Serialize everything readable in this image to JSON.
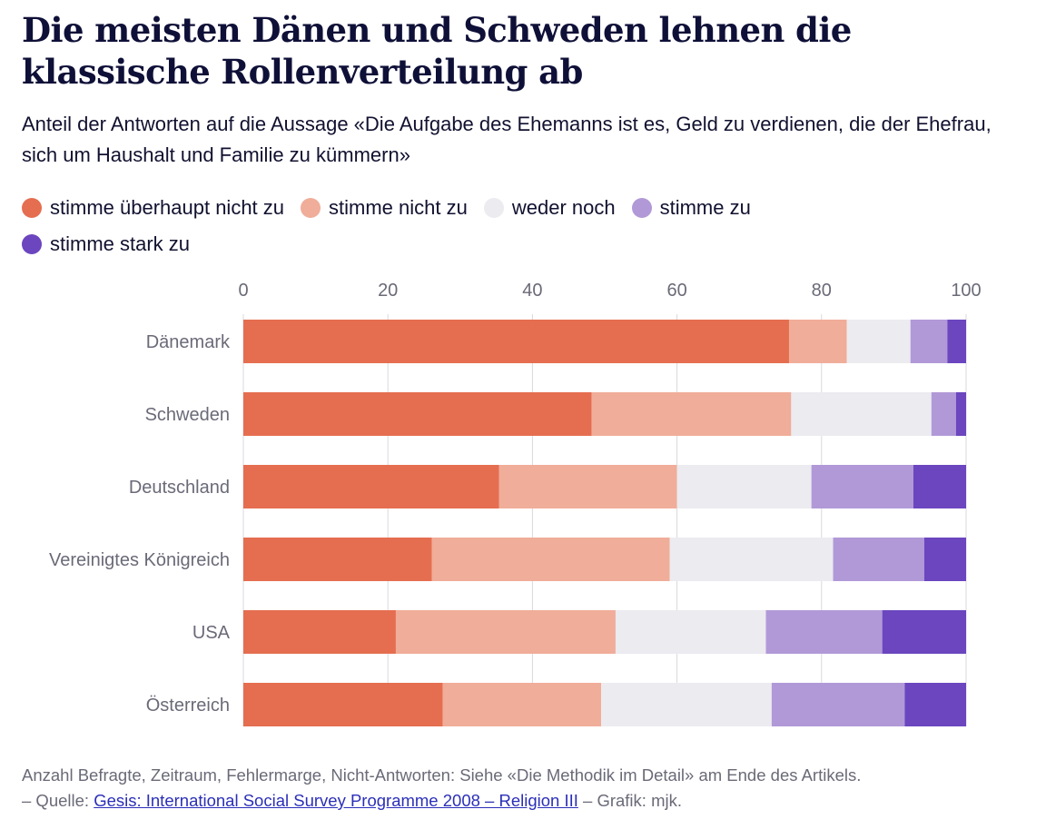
{
  "title": "Die meisten Dänen und Schweden lehnen die klassische Rollenverteilung ab",
  "subtitle": "Anteil der Antworten auf die Aussage «Die Aufgabe des Ehemanns ist es, Geld zu verdienen, die der Ehefrau, sich um Haushalt und Familie zu kümmern»",
  "legend": [
    {
      "label": "stimme überhaupt nicht zu",
      "color": "#e56e50"
    },
    {
      "label": "stimme nicht zu",
      "color": "#f0ad99"
    },
    {
      "label": "weder noch",
      "color": "#ebebf0"
    },
    {
      "label": "stimme zu",
      "color": "#b199d8"
    },
    {
      "label": "stimme stark zu",
      "color": "#6b46bf"
    }
  ],
  "chart_data": {
    "type": "bar",
    "orientation": "horizontal",
    "stacked": true,
    "categories": [
      "Dänemark",
      "Schweden",
      "Deutschland",
      "Vereinigtes Königreich",
      "USA",
      "Österreich"
    ],
    "series": [
      {
        "name": "stimme überhaupt nicht zu",
        "color": "#e56e50",
        "values": [
          75.5,
          48.2,
          35.4,
          26.1,
          21.1,
          27.6
        ]
      },
      {
        "name": "stimme nicht zu",
        "color": "#f0ad99",
        "values": [
          8.0,
          27.6,
          24.6,
          32.9,
          30.4,
          21.9
        ]
      },
      {
        "name": "weder noch",
        "color": "#ebebf0",
        "values": [
          8.8,
          19.4,
          18.6,
          22.6,
          20.8,
          23.6
        ]
      },
      {
        "name": "stimme zu",
        "color": "#b199d8",
        "values": [
          5.1,
          3.4,
          14.1,
          12.6,
          16.1,
          18.4
        ]
      },
      {
        "name": "stimme stark zu",
        "color": "#6b46bf",
        "values": [
          2.6,
          1.4,
          7.3,
          5.8,
          11.6,
          8.5
        ]
      }
    ],
    "x_ticks": [
      0,
      20,
      40,
      60,
      80,
      100
    ],
    "xlim": [
      0,
      100
    ],
    "grid": true,
    "axis_position": "top"
  },
  "footer": {
    "line1": "Anzahl Befragte, Zeitraum, Fehlermarge, Nicht-Antworten: Siehe «Die Methodik im Detail» am Ende des Artikels.",
    "source_prefix": "– Quelle: ",
    "source_link": "Gesis: International Social Survey Programme 2008 – Religion III",
    "source_suffix": " – Grafik: mjk."
  }
}
